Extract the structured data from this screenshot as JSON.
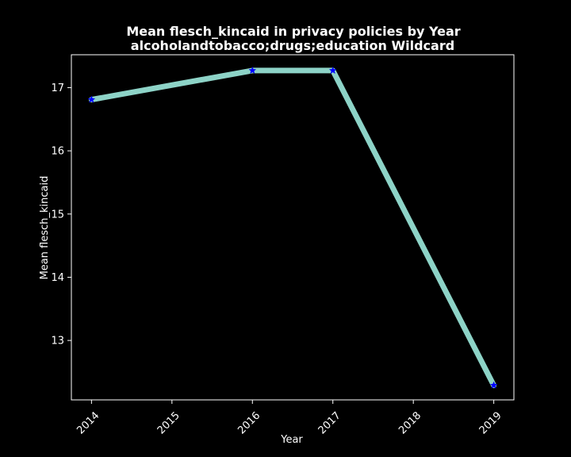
{
  "chart_data": {
    "type": "line",
    "title_line1": "Mean flesch_kincaid in privacy policies by Year",
    "title_line2": "alcoholandtobacco;drugs;education Wildcard",
    "xlabel": "Year",
    "ylabel": "Mean flesch_kincaid",
    "x": [
      2014,
      2016,
      2017,
      2019
    ],
    "y": [
      16.81,
      17.27,
      17.27,
      12.29
    ],
    "x_ticks": [
      "2014",
      "2015",
      "2016",
      "2017",
      "2018",
      "2019"
    ],
    "y_ticks": [
      "13",
      "14",
      "15",
      "16",
      "17"
    ],
    "xlim": [
      2013.75,
      2019.25
    ],
    "ylim": [
      12.06,
      17.52
    ],
    "grid": false,
    "colors": {
      "background": "#000000",
      "line": "#8dd3c7",
      "marker": "#0000ff",
      "axis": "#ffffff",
      "text": "#ffffff"
    },
    "marker_icon": "star-marker"
  }
}
